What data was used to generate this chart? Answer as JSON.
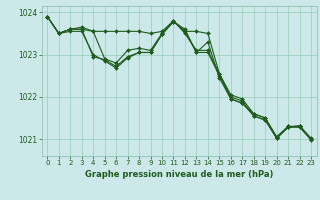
{
  "title": "Graphe pression niveau de la mer (hPa)",
  "bg_color": "#cde8e8",
  "plot_bg_color": "#cde8e8",
  "line_color": "#1e5c1e",
  "grid_color": "#99ccbb",
  "ylim": [
    1020.6,
    1024.15
  ],
  "xlim": [
    -0.5,
    23.5
  ],
  "yticks": [
    1021,
    1022,
    1023,
    1024
  ],
  "xticks": [
    0,
    1,
    2,
    3,
    4,
    5,
    6,
    7,
    8,
    9,
    10,
    11,
    12,
    13,
    14,
    15,
    16,
    17,
    18,
    19,
    20,
    21,
    22,
    23
  ],
  "series": [
    [
      1023.9,
      1023.5,
      1023.6,
      1023.65,
      1023.55,
      1023.55,
      1023.55,
      1023.55,
      1023.55,
      1023.5,
      1023.55,
      1023.8,
      1023.55,
      1023.55,
      1023.5,
      1022.55,
      1021.95,
      1021.85,
      1021.6,
      1021.5,
      1021.05,
      1021.3,
      1021.3,
      1021.0
    ],
    [
      1023.9,
      1023.5,
      1023.6,
      1023.6,
      1023.55,
      1022.9,
      1022.8,
      1023.1,
      1023.15,
      1023.1,
      1023.5,
      1023.8,
      1023.5,
      1023.1,
      1023.1,
      1022.55,
      1022.05,
      1021.95,
      1021.6,
      1021.5,
      1021.05,
      1021.3,
      1021.3,
      1021.0
    ],
    [
      1023.9,
      1023.5,
      1023.6,
      1023.6,
      1022.95,
      1022.88,
      1022.72,
      1022.95,
      1023.05,
      1023.05,
      1023.48,
      1023.78,
      1023.55,
      1023.05,
      1023.05,
      1022.5,
      1022.0,
      1021.9,
      1021.55,
      1021.45,
      1021.02,
      1021.28,
      1021.28,
      1020.98
    ],
    [
      1023.9,
      1023.5,
      1023.55,
      1023.55,
      1023.0,
      1022.85,
      1022.68,
      1022.92,
      1023.05,
      1023.05,
      1023.48,
      1023.78,
      1023.6,
      1023.05,
      1023.3,
      1022.45,
      1021.95,
      1021.85,
      1021.55,
      1021.45,
      1021.02,
      1021.28,
      1021.32,
      1021.02
    ]
  ]
}
